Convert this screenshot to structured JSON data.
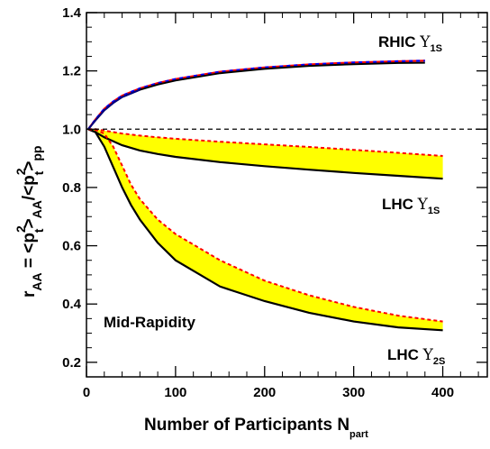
{
  "chart_data": {
    "type": "line",
    "title": "",
    "xlabel": "Number of Participants N",
    "xlabel_sub": "part",
    "ylabel_parts": {
      "r": "r",
      "r_sub": "AA",
      "eq": " = <p",
      "t1_sup": "2",
      "t1_sub": "t",
      "close1": ">",
      "aa_sub": "AA",
      "slash": "/<p",
      "t2_sup": "2",
      "t2_sub": "t",
      "close2": ">",
      "pp_sub": "pp"
    },
    "xlim": [
      0,
      450
    ],
    "ylim": [
      0.15,
      1.4
    ],
    "x_ticks": [
      0,
      100,
      200,
      300,
      400
    ],
    "x_tick_labels": [
      "0",
      "100",
      "200",
      "300",
      "400"
    ],
    "y_ticks": [
      0.2,
      0.4,
      0.6,
      0.8,
      1.0,
      1.2,
      1.4
    ],
    "y_tick_labels": [
      "0.2",
      "0.4",
      "0.6",
      "0.8",
      "1.0",
      "1.2",
      "1.4"
    ],
    "reference_line_y": 1.0,
    "annotations": {
      "rhic": {
        "main": "RHIC ",
        "upsilon": "Υ",
        "sub": "1S"
      },
      "lhc1": {
        "main": "LHC ",
        "upsilon": "Υ",
        "sub": "1S"
      },
      "lhc2": {
        "main": "LHC ",
        "upsilon": "Υ",
        "sub": "2S"
      },
      "rapidity": "Mid-Rapidity"
    },
    "colors": {
      "fill": "#ffff00",
      "black": "#000000",
      "red_dashed": "#ff0000",
      "blue_dashed": "#0000ff",
      "navy": "#000080"
    },
    "bands": [
      {
        "id": "lhc1s",
        "x": [
          2,
          10,
          20,
          40,
          60,
          80,
          100,
          150,
          200,
          250,
          300,
          350,
          400
        ],
        "upper": [
          1.0,
          1.0,
          0.995,
          0.985,
          0.978,
          0.972,
          0.967,
          0.957,
          0.948,
          0.939,
          0.929,
          0.919,
          0.908
        ],
        "lower": [
          1.0,
          0.99,
          0.972,
          0.945,
          0.927,
          0.915,
          0.905,
          0.887,
          0.873,
          0.861,
          0.85,
          0.84,
          0.83
        ]
      },
      {
        "id": "lhc2s",
        "x": [
          2,
          10,
          20,
          30,
          40,
          50,
          60,
          80,
          100,
          150,
          200,
          250,
          300,
          350,
          400
        ],
        "upper": [
          1.0,
          0.998,
          0.985,
          0.94,
          0.875,
          0.81,
          0.76,
          0.69,
          0.64,
          0.55,
          0.48,
          0.43,
          0.39,
          0.36,
          0.34
        ],
        "lower": [
          1.0,
          0.99,
          0.94,
          0.87,
          0.8,
          0.74,
          0.69,
          0.61,
          0.55,
          0.46,
          0.41,
          0.37,
          0.34,
          0.32,
          0.31
        ]
      }
    ],
    "series": [
      {
        "id": "rhic1s",
        "x": [
          2,
          10,
          20,
          30,
          40,
          60,
          80,
          100,
          150,
          200,
          250,
          300,
          350,
          380
        ],
        "black": [
          1.0,
          1.03,
          1.065,
          1.09,
          1.11,
          1.135,
          1.153,
          1.167,
          1.192,
          1.207,
          1.217,
          1.223,
          1.227,
          1.228
        ],
        "dashed": [
          1.0,
          1.033,
          1.07,
          1.095,
          1.115,
          1.14,
          1.158,
          1.172,
          1.197,
          1.212,
          1.222,
          1.229,
          1.233,
          1.235
        ]
      }
    ]
  }
}
